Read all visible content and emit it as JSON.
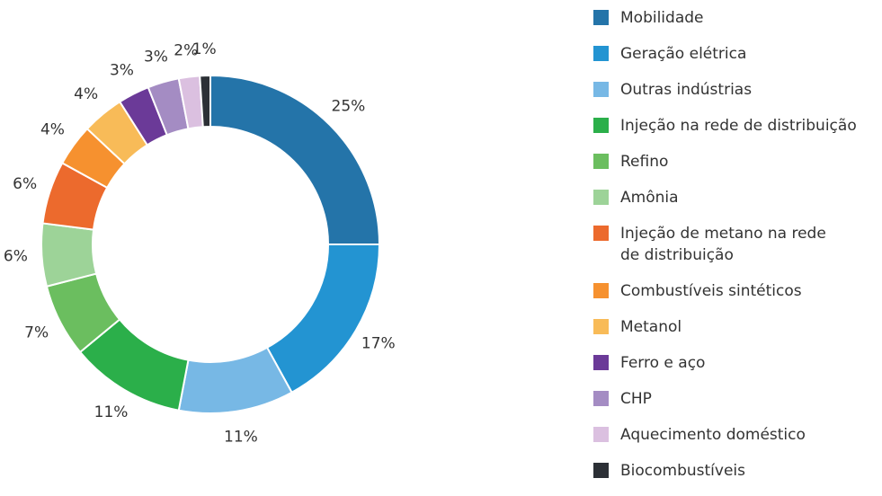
{
  "chart_data": {
    "type": "donut",
    "categories": [
      "Mobilidade",
      "Geração elétrica",
      "Outras indústrias",
      "Injeção na rede de distribuição",
      "Refino",
      "Amônia",
      "Injeção de metano na rede\nde distribuição",
      "Combustíveis sintéticos",
      "Metanol",
      "Ferro e aço",
      "CHP",
      "Aquecimento doméstico",
      "Biocombustíveis"
    ],
    "values": [
      25,
      17,
      11,
      11,
      7,
      6,
      6,
      4,
      4,
      3,
      3,
      2,
      1
    ],
    "value_labels": [
      "25%",
      "17%",
      "11%",
      "11%",
      "7%",
      "6%",
      "6%",
      "4%",
      "4%",
      "3%",
      "3%",
      "2%",
      "1%"
    ],
    "colors": [
      "#2474a9",
      "#2394d2",
      "#77b8e5",
      "#2baf4a",
      "#6bbe5f",
      "#9dd398",
      "#ec6a2d",
      "#f6912f",
      "#f8bb58",
      "#6b3a98",
      "#a48cc3",
      "#dbc0e0",
      "#2c3036"
    ],
    "legend": "right"
  }
}
